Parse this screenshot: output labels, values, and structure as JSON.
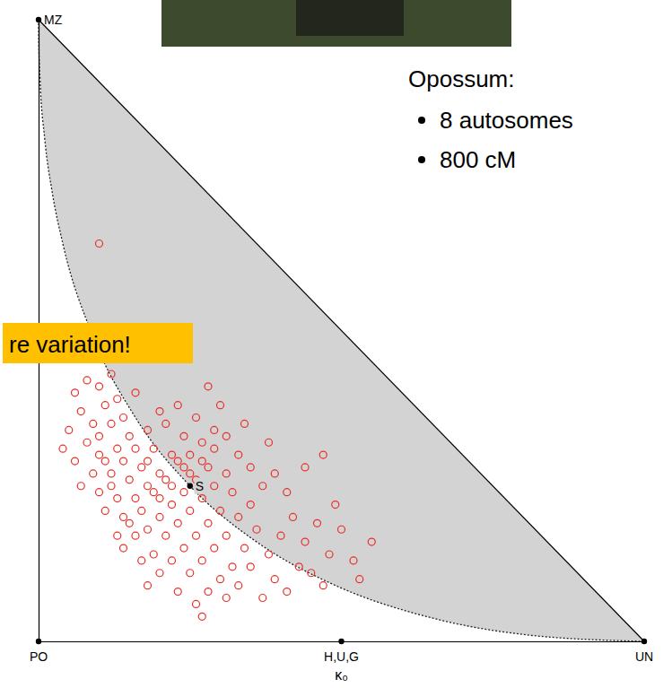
{
  "chart_data": {
    "type": "scatter",
    "xlabel": "κ₀",
    "xlim": [
      0,
      1
    ],
    "ylim": [
      0,
      1
    ],
    "tick_labels": false,
    "color": "#e8302a",
    "marker": "circle-open",
    "x": [
      0.06,
      0.08,
      0.1,
      0.12,
      0.07,
      0.05,
      0.09,
      0.11,
      0.13,
      0.04,
      0.06,
      0.08,
      0.1,
      0.12,
      0.14,
      0.16,
      0.15,
      0.13,
      0.11,
      0.09,
      0.07,
      0.1,
      0.12,
      0.14,
      0.16,
      0.18,
      0.2,
      0.17,
      0.15,
      0.13,
      0.11,
      0.14,
      0.16,
      0.18,
      0.2,
      0.22,
      0.24,
      0.19,
      0.21,
      0.23,
      0.26,
      0.25,
      0.27,
      0.29,
      0.28,
      0.26,
      0.24,
      0.22,
      0.2,
      0.18,
      0.16,
      0.14,
      0.19,
      0.21,
      0.23,
      0.25,
      0.27,
      0.29,
      0.31,
      0.33,
      0.35,
      0.32,
      0.3,
      0.28,
      0.26,
      0.24,
      0.22,
      0.2,
      0.18,
      0.23,
      0.25,
      0.27,
      0.29,
      0.31,
      0.33,
      0.35,
      0.37,
      0.39,
      0.36,
      0.34,
      0.32,
      0.3,
      0.28,
      0.26,
      0.27,
      0.31,
      0.33,
      0.35,
      0.38,
      0.4,
      0.42,
      0.41,
      0.44,
      0.46,
      0.43,
      0.39,
      0.37,
      0.41,
      0.45,
      0.48,
      0.5,
      0.52,
      0.55,
      0.49,
      0.47,
      0.53,
      0.44,
      0.47,
      0.38,
      0.34,
      0.3,
      0.28,
      0.17,
      0.19,
      0.21,
      0.23,
      0.25,
      0.27,
      0.29,
      0.31,
      0.22,
      0.24,
      0.2,
      0.18,
      0.15,
      0.13,
      0.17,
      0.12,
      0.1,
      0.1
    ],
    "values": [
      0.4,
      0.42,
      0.41,
      0.43,
      0.37,
      0.34,
      0.35,
      0.38,
      0.39,
      0.31,
      0.29,
      0.32,
      0.33,
      0.35,
      0.36,
      0.4,
      0.33,
      0.31,
      0.29,
      0.27,
      0.25,
      0.24,
      0.27,
      0.29,
      0.31,
      0.34,
      0.37,
      0.28,
      0.26,
      0.23,
      0.21,
      0.2,
      0.23,
      0.25,
      0.27,
      0.3,
      0.33,
      0.31,
      0.35,
      0.38,
      0.36,
      0.3,
      0.32,
      0.34,
      0.28,
      0.26,
      0.24,
      0.22,
      0.2,
      0.18,
      0.17,
      0.15,
      0.14,
      0.17,
      0.19,
      0.21,
      0.23,
      0.25,
      0.27,
      0.3,
      0.28,
      0.24,
      0.21,
      0.19,
      0.17,
      0.15,
      0.13,
      0.11,
      0.09,
      0.08,
      0.11,
      0.13,
      0.15,
      0.17,
      0.2,
      0.22,
      0.25,
      0.27,
      0.18,
      0.15,
      0.12,
      0.1,
      0.08,
      0.06,
      0.04,
      0.07,
      0.09,
      0.12,
      0.14,
      0.17,
      0.2,
      0.24,
      0.16,
      0.19,
      0.12,
      0.1,
      0.07,
      0.08,
      0.11,
      0.14,
      0.18,
      0.13,
      0.16,
      0.22,
      0.09,
      0.1,
      0.28,
      0.3,
      0.32,
      0.35,
      0.38,
      0.41,
      0.21,
      0.24,
      0.26,
      0.29,
      0.27,
      0.29,
      0.31,
      0.33,
      0.25,
      0.28,
      0.23,
      0.29,
      0.19,
      0.17,
      0.13,
      0.25,
      0.3,
      0.64
    ],
    "reference_points": {
      "labels": [
        "MZ",
        "PO",
        "H,U,G",
        "UN",
        "S"
      ],
      "x": [
        0,
        0,
        0.5,
        1,
        0.25
      ],
      "y": [
        1,
        0,
        0,
        0,
        0.25
      ]
    },
    "boundary": {
      "x": [
        0,
        0.0001,
        0.0004,
        0.0025,
        0.01,
        0.0225,
        0.04,
        0.09,
        0.16,
        0.25,
        0.36,
        0.49,
        0.64,
        0.81,
        1
      ],
      "y": [
        1,
        0.9801,
        0.9604,
        0.9025,
        0.81,
        0.7225,
        0.64,
        0.49,
        0.36,
        0.25,
        0.16,
        0.09,
        0.04,
        0.01,
        0
      ]
    },
    "annotations": {
      "heading": "Opossum:",
      "items": [
        "8 autosomes",
        "800 cM"
      ],
      "callout": "re variation!"
    }
  }
}
